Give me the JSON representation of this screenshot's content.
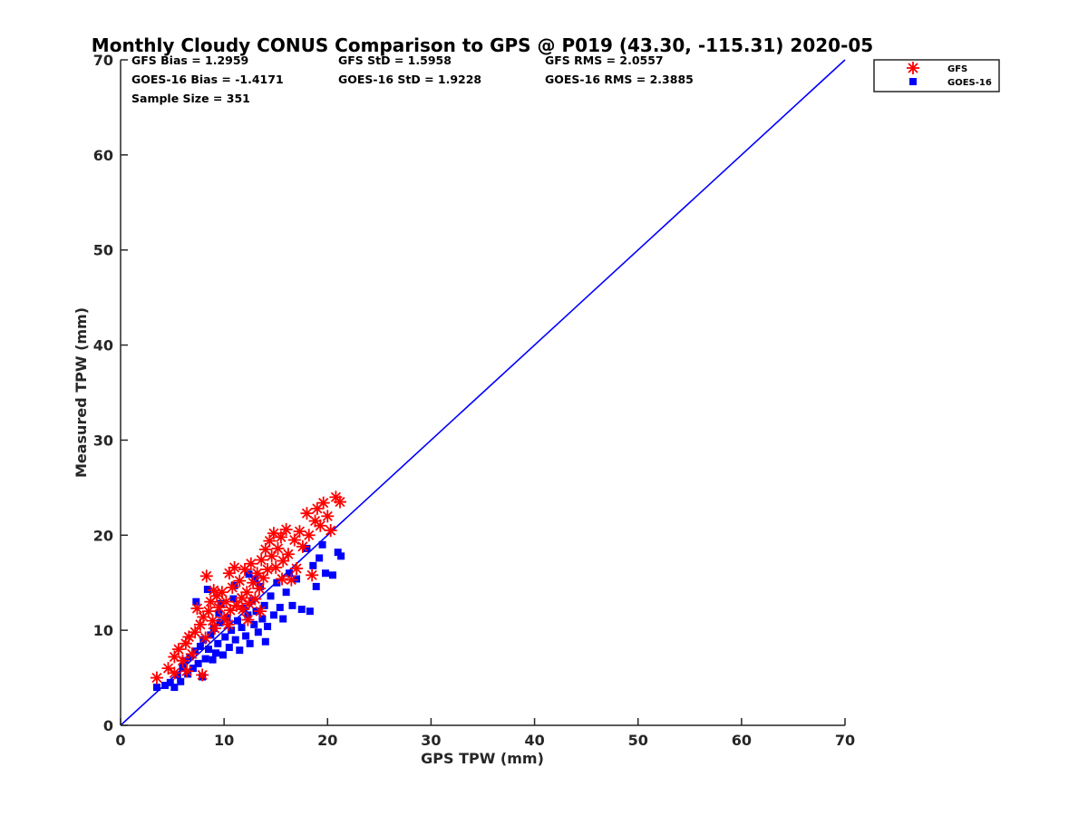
{
  "chart_data": {
    "type": "scatter",
    "title": "Monthly Cloudy CONUS Comparison to GPS @ P019 (43.30, -115.31) 2020-05",
    "xlabel": "GPS TPW (mm)",
    "ylabel": "Measured TPW (mm)",
    "xlim": [
      0,
      70
    ],
    "ylim": [
      0,
      70
    ],
    "xticks": [
      "0",
      "10",
      "20",
      "30",
      "40",
      "50",
      "60",
      "70"
    ],
    "yticks": [
      "0",
      "10",
      "20",
      "30",
      "40",
      "50",
      "60",
      "70"
    ],
    "grid": false,
    "legend_position": "top-right",
    "stats": {
      "gfs_bias": "GFS Bias = 1.2959",
      "goes_bias": "GOES-16 Bias = -1.4171",
      "sample_size": "Sample Size = 351",
      "gfs_std": "GFS StD = 1.5958",
      "goes_std": "GOES-16 StD = 1.9228",
      "gfs_rms": "GFS RMS = 2.0557",
      "goes_rms": "GOES-16 RMS = 2.3885"
    },
    "reference_line": {
      "x": [
        0,
        70
      ],
      "y": [
        0,
        70
      ],
      "color": "#0000ff"
    },
    "series": [
      {
        "name": "GFS",
        "marker": "asterisk",
        "color": "#ff0000",
        "points": [
          [
            3.5,
            5.0
          ],
          [
            4.6,
            6.0
          ],
          [
            5.2,
            7.2
          ],
          [
            5.6,
            8.0
          ],
          [
            5.2,
            5.5
          ],
          [
            6.0,
            6.8
          ],
          [
            6.3,
            8.6
          ],
          [
            6.6,
            9.3
          ],
          [
            6.9,
            7.5
          ],
          [
            7.2,
            9.8
          ],
          [
            7.4,
            12.3
          ],
          [
            7.7,
            10.6
          ],
          [
            8.0,
            11.4
          ],
          [
            8.3,
            15.7
          ],
          [
            8.2,
            9.2
          ],
          [
            8.5,
            12.0
          ],
          [
            8.7,
            13.0
          ],
          [
            8.9,
            11.0
          ],
          [
            9.1,
            10.2
          ],
          [
            9.3,
            13.6
          ],
          [
            9.5,
            12.4
          ],
          [
            9.8,
            14.0
          ],
          [
            10.0,
            11.3
          ],
          [
            10.2,
            13.0
          ],
          [
            10.5,
            16.0
          ],
          [
            10.6,
            12.1
          ],
          [
            10.8,
            14.5
          ],
          [
            11.0,
            16.6
          ],
          [
            11.2,
            12.6
          ],
          [
            11.5,
            15.2
          ],
          [
            11.7,
            13.4
          ],
          [
            12.0,
            16.4
          ],
          [
            12.2,
            14.0
          ],
          [
            12.4,
            12.8
          ],
          [
            12.6,
            17.0
          ],
          [
            12.8,
            15.0
          ],
          [
            13.0,
            13.3
          ],
          [
            13.2,
            16.0
          ],
          [
            13.4,
            14.4
          ],
          [
            13.6,
            17.4
          ],
          [
            13.8,
            15.5
          ],
          [
            14.0,
            18.5
          ],
          [
            14.2,
            16.4
          ],
          [
            14.4,
            19.4
          ],
          [
            14.6,
            17.8
          ],
          [
            14.8,
            20.2
          ],
          [
            15.0,
            16.6
          ],
          [
            15.2,
            18.6
          ],
          [
            15.5,
            19.8
          ],
          [
            15.7,
            17.3
          ],
          [
            16.0,
            20.6
          ],
          [
            16.2,
            18.0
          ],
          [
            16.5,
            15.3
          ],
          [
            16.8,
            19.5
          ],
          [
            17.0,
            16.5
          ],
          [
            17.3,
            20.4
          ],
          [
            17.6,
            18.8
          ],
          [
            18.0,
            22.3
          ],
          [
            18.2,
            20.0
          ],
          [
            18.5,
            15.8
          ],
          [
            18.8,
            21.5
          ],
          [
            19.0,
            22.8
          ],
          [
            19.3,
            21.0
          ],
          [
            19.6,
            23.4
          ],
          [
            20.0,
            22.0
          ],
          [
            20.3,
            20.5
          ],
          [
            20.8,
            24.0
          ],
          [
            21.2,
            23.5
          ],
          [
            9.0,
            14.2
          ],
          [
            11.8,
            12.2
          ],
          [
            7.9,
            5.3
          ],
          [
            6.4,
            5.7
          ],
          [
            13.5,
            12.0
          ],
          [
            10.4,
            10.6
          ],
          [
            15.6,
            15.4
          ],
          [
            12.3,
            11.1
          ]
        ]
      },
      {
        "name": "GOES-16",
        "marker": "square",
        "color": "#0000ff",
        "points": [
          [
            3.5,
            4.0
          ],
          [
            4.3,
            4.2
          ],
          [
            4.8,
            4.5
          ],
          [
            5.2,
            4.0
          ],
          [
            5.5,
            5.3
          ],
          [
            5.8,
            4.6
          ],
          [
            6.0,
            6.1
          ],
          [
            6.2,
            6.8
          ],
          [
            6.5,
            5.4
          ],
          [
            6.7,
            7.2
          ],
          [
            7.0,
            6.0
          ],
          [
            7.2,
            7.8
          ],
          [
            7.3,
            13.0
          ],
          [
            7.5,
            6.5
          ],
          [
            7.7,
            8.3
          ],
          [
            7.9,
            5.1
          ],
          [
            8.0,
            9.0
          ],
          [
            8.2,
            7.0
          ],
          [
            8.4,
            14.3
          ],
          [
            8.5,
            8.0
          ],
          [
            8.7,
            9.5
          ],
          [
            8.9,
            6.9
          ],
          [
            9.0,
            10.2
          ],
          [
            9.2,
            7.6
          ],
          [
            9.4,
            8.6
          ],
          [
            9.6,
            10.8
          ],
          [
            9.7,
            12.8
          ],
          [
            9.9,
            7.4
          ],
          [
            10.1,
            9.3
          ],
          [
            10.3,
            11.3
          ],
          [
            10.5,
            8.2
          ],
          [
            10.7,
            10.0
          ],
          [
            10.9,
            13.3
          ],
          [
            11.1,
            9.0
          ],
          [
            11.3,
            11.0
          ],
          [
            11.5,
            7.9
          ],
          [
            11.7,
            10.3
          ],
          [
            11.9,
            12.3
          ],
          [
            12.1,
            9.4
          ],
          [
            12.3,
            11.6
          ],
          [
            12.5,
            8.6
          ],
          [
            12.7,
            13.1
          ],
          [
            12.9,
            10.6
          ],
          [
            13.1,
            12.0
          ],
          [
            13.3,
            9.8
          ],
          [
            13.5,
            14.6
          ],
          [
            13.7,
            11.2
          ],
          [
            13.9,
            12.6
          ],
          [
            14.2,
            10.4
          ],
          [
            14.5,
            13.6
          ],
          [
            14.8,
            11.6
          ],
          [
            15.1,
            15.0
          ],
          [
            15.4,
            12.4
          ],
          [
            15.7,
            11.2
          ],
          [
            16.0,
            14.0
          ],
          [
            16.3,
            16.0
          ],
          [
            16.6,
            12.6
          ],
          [
            17.0,
            15.4
          ],
          [
            17.5,
            12.2
          ],
          [
            18.0,
            18.6
          ],
          [
            18.3,
            12.0
          ],
          [
            18.6,
            16.8
          ],
          [
            18.9,
            14.6
          ],
          [
            19.2,
            17.6
          ],
          [
            19.5,
            19.0
          ],
          [
            19.8,
            16.0
          ],
          [
            20.5,
            15.8
          ],
          [
            21.0,
            18.2
          ],
          [
            21.3,
            17.8
          ],
          [
            12.4,
            15.9
          ],
          [
            11.0,
            14.7
          ],
          [
            9.5,
            11.8
          ],
          [
            14.0,
            8.8
          ],
          [
            13.0,
            15.4
          ]
        ]
      }
    ]
  }
}
